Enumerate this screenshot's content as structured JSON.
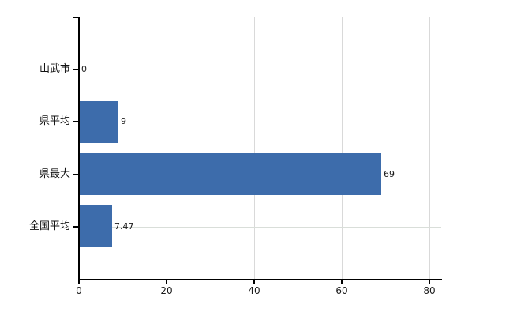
{
  "chart_data": {
    "type": "bar",
    "orientation": "horizontal",
    "title": "",
    "categories": [
      "山武市",
      "県平均",
      "県最大",
      "全国平均"
    ],
    "values": [
      0,
      9,
      69,
      7.47
    ],
    "value_labels": [
      "0",
      "9",
      "69",
      "7.47"
    ],
    "xticks": [
      0,
      20,
      40,
      60,
      80
    ],
    "xtick_labels": [
      "0",
      "20",
      "40",
      "60",
      "80"
    ],
    "xlim": [
      0,
      82.7
    ],
    "ylabel": "",
    "xlabel": "",
    "grid": true,
    "legend": "none",
    "bar_color": "#3d6cab",
    "axis_color": "#000000",
    "gridline_h_color": "#d9ded9",
    "gridline_v_color": "#d9d9d9",
    "plot_top_border_style": "dashed",
    "background_color": "#ffffff",
    "text_color": "#1a1a1a"
  }
}
